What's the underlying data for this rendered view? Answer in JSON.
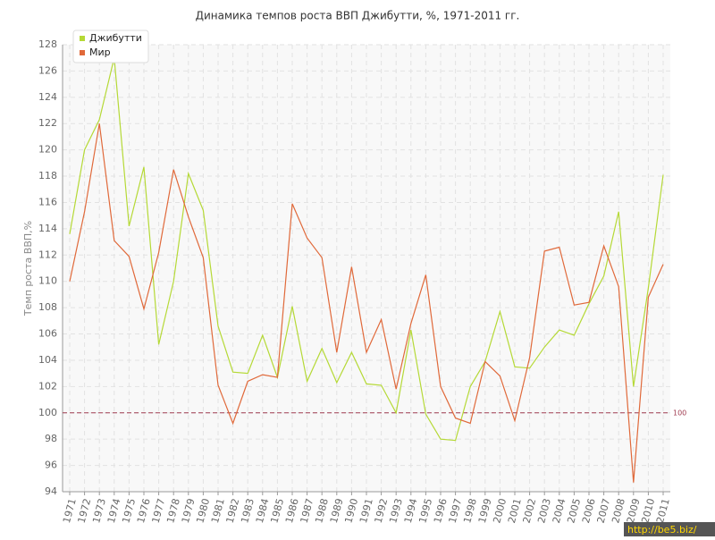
{
  "chart_data": {
    "type": "line",
    "title": "Динамика темпов роста ВВП Джибутти, %, 1971-2011 гг.",
    "y_label": "Темп роста ВВП,%",
    "watermark": "http://be5.biz/",
    "x": [
      1971,
      1972,
      1973,
      1974,
      1975,
      1976,
      1977,
      1978,
      1979,
      1980,
      1981,
      1982,
      1983,
      1984,
      1985,
      1986,
      1987,
      1988,
      1989,
      1990,
      1991,
      1992,
      1993,
      1994,
      1995,
      1996,
      1997,
      1998,
      1999,
      2000,
      2001,
      2002,
      2003,
      2004,
      2005,
      2006,
      2007,
      2008,
      2009,
      2010,
      2011
    ],
    "xlim": [
      1971,
      2011
    ],
    "series": [
      {
        "name": "Джибутти",
        "color": "#b5d936",
        "values": [
          113.6,
          120,
          122.3,
          127,
          114.2,
          118.7,
          105.2,
          110,
          118.2,
          115.4,
          106.6,
          103.1,
          103.0,
          105.9,
          102.7,
          108.1,
          102.4,
          104.9,
          102.3,
          104.6,
          102.2,
          102.1,
          100.0,
          106.3,
          99.9,
          98.0,
          97.9,
          102.0,
          103.9,
          107.7,
          103.5,
          103.4,
          105.0,
          106.3,
          105.9,
          108.3,
          110.4,
          115.3,
          102.0,
          109.5,
          118.1
        ]
      },
      {
        "name": "Мир",
        "color": "#e0693a",
        "values": [
          110,
          115.3,
          122,
          113.1,
          111.9,
          107.9,
          112.2,
          118.5,
          114.9,
          111.8,
          102.1,
          99.2,
          102.4,
          102.9,
          102.7,
          115.9,
          113.3,
          111.8,
          104.6,
          111.1,
          104.6,
          107.1,
          101.8,
          106.8,
          110.5,
          102.0,
          99.6,
          99.2,
          103.9,
          102.8,
          99.4,
          104.2,
          112.3,
          112.6,
          108.2,
          108.4,
          112.7,
          109.6,
          94.7,
          108.8,
          111.3
        ]
      }
    ],
    "ylim": [
      94,
      128
    ],
    "yticks": [
      94,
      96,
      98,
      100,
      102,
      104,
      106,
      108,
      110,
      112,
      114,
      116,
      118,
      120,
      122,
      124,
      126,
      128
    ],
    "reference_line": 100,
    "reference_color": "#a03c50",
    "grid": true,
    "legend": "top-left"
  }
}
